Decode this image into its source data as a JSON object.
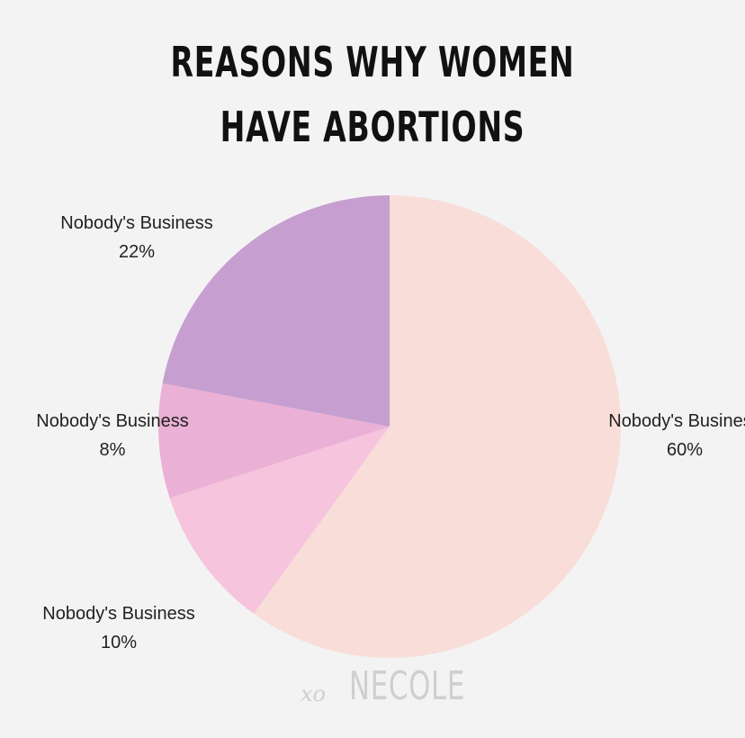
{
  "chart_data": {
    "type": "pie",
    "title_lines": [
      "REASONS WHY WOMEN",
      "HAVE ABORTIONS"
    ],
    "slices": [
      {
        "label": "Nobody's Business",
        "value": 60,
        "value_text": "60%",
        "color": "#f8ddd9"
      },
      {
        "label": "Nobody's Business",
        "value": 10,
        "value_text": "10%",
        "color": "#f6c4dc"
      },
      {
        "label": "Nobody's Business",
        "value": 8,
        "value_text": "8%",
        "color": "#ebb0d6"
      },
      {
        "label": "Nobody's Business",
        "value": 22,
        "value_text": "22%",
        "color": "#c69fd0"
      }
    ],
    "start_angle_deg": 0,
    "direction": "clockwise",
    "legend": "none"
  },
  "watermark": {
    "script": "xo",
    "word": "NECOLE"
  },
  "colors": {
    "background": "#f4f3f4",
    "title": "#111111",
    "label": "#222222",
    "watermark": "#cfcfcf"
  }
}
